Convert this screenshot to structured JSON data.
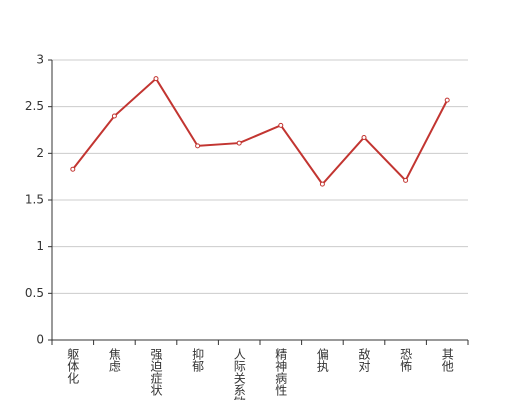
{
  "chart_data": {
    "type": "line",
    "categories": [
      "躯体化",
      "焦虑",
      "强迫症状",
      "抑郁",
      "人际关系敏感",
      "精神病性",
      "偏执",
      "敌对",
      "恐怖",
      "其他"
    ],
    "values": [
      1.83,
      2.4,
      2.8,
      2.08,
      2.11,
      2.3,
      1.67,
      2.17,
      1.71,
      2.57
    ],
    "color": "#c23531",
    "ylim": [
      0,
      3
    ],
    "yticks": [
      0,
      0.5,
      1,
      1.5,
      2,
      2.5,
      3
    ],
    "grid": true
  }
}
